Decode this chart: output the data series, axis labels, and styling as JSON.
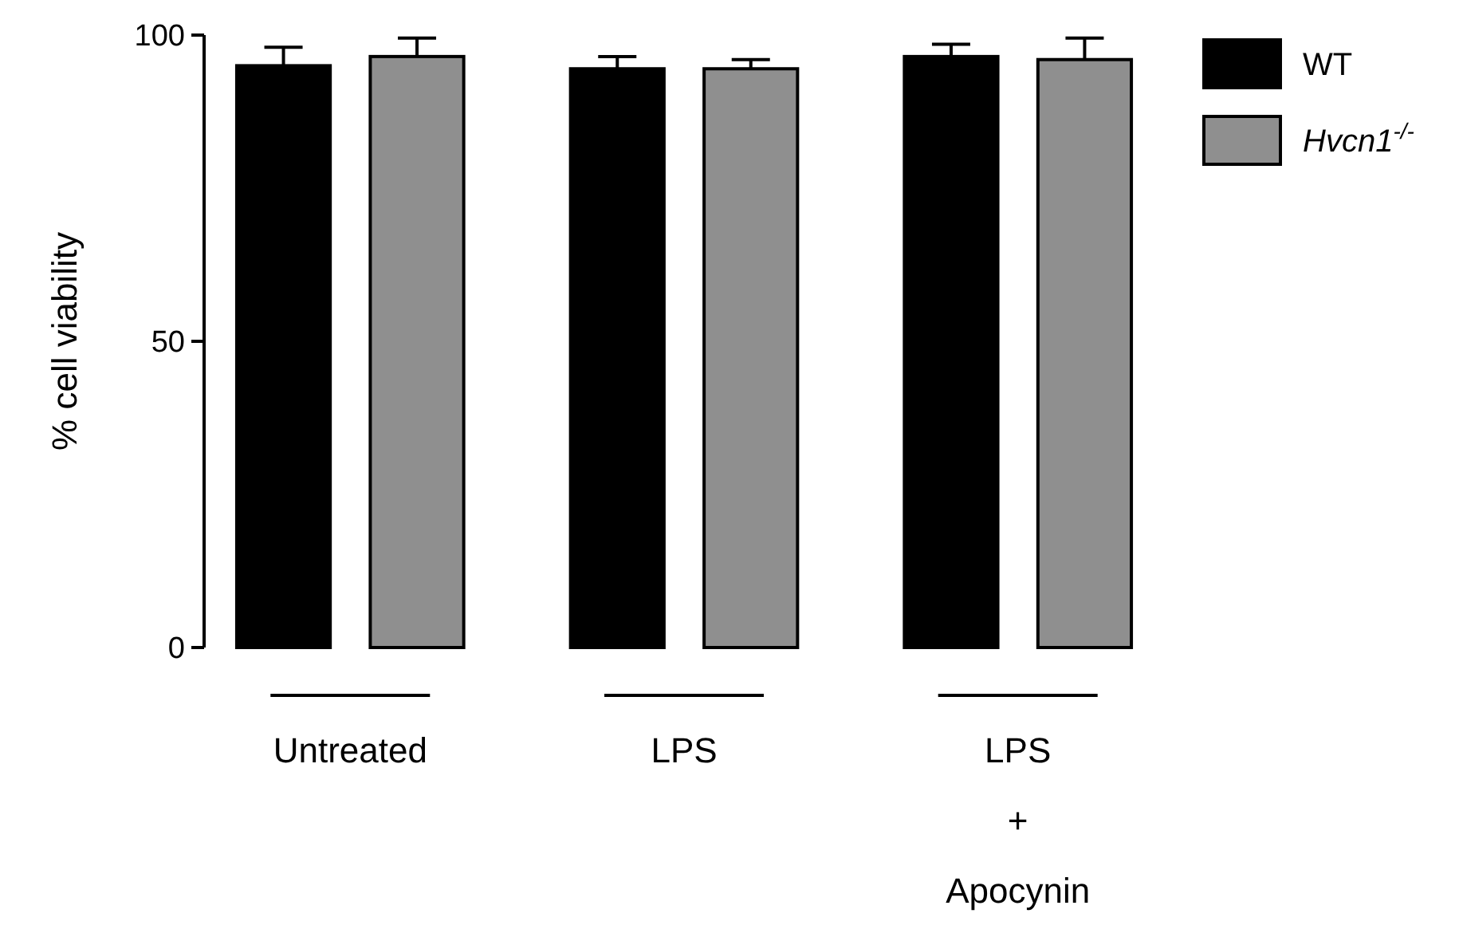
{
  "chart_data": {
    "type": "bar",
    "ylabel": "% cell viability",
    "categories": [
      "Untreated",
      "LPS",
      "LPS\n+\nApocynin"
    ],
    "series": [
      {
        "name": "WT",
        "color": "#000000",
        "values": [
          95,
          94.5,
          96.5
        ],
        "errors": [
          3,
          2,
          2
        ]
      },
      {
        "name": "Hvcn1$^{-/-}$",
        "color": "#8f8f8f",
        "values": [
          96.5,
          94.5,
          96
        ],
        "errors": [
          3,
          1.5,
          3.5
        ]
      }
    ],
    "ylim": [
      0,
      100
    ],
    "yticks": [
      0,
      50,
      100
    ],
    "grid": false,
    "legend": "top right"
  }
}
